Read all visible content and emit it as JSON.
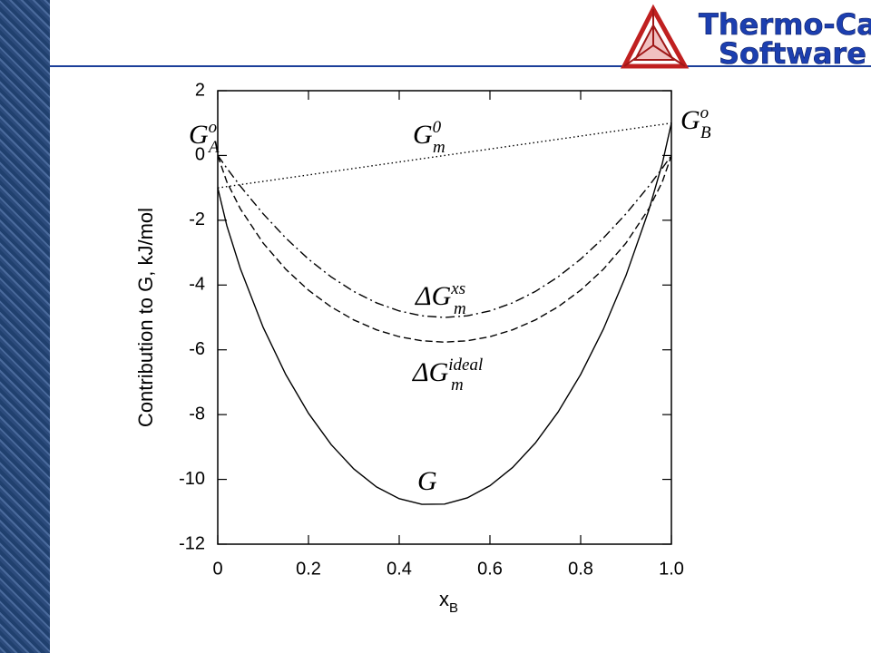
{
  "header": {
    "brand_line1": "Thermo-Calc",
    "brand_line2": "Software"
  },
  "chart_data": {
    "type": "line",
    "ylabel": "Contribution to G, kJ/mol",
    "xlabel": "x",
    "xlabel_sub": "B",
    "x": [
      0,
      0.02,
      0.05,
      0.1,
      0.15,
      0.2,
      0.25,
      0.3,
      0.35,
      0.4,
      0.45,
      0.5,
      0.55,
      0.6,
      0.65,
      0.7,
      0.75,
      0.8,
      0.85,
      0.9,
      0.95,
      0.98,
      1
    ],
    "series": [
      {
        "color": "#000000",
        "linestyle": "dotted",
        "values": [
          -1,
          -0.96,
          -0.9,
          -0.8,
          -0.7,
          -0.6,
          -0.5,
          -0.4,
          -0.3,
          -0.2,
          -0.1,
          0,
          0.1,
          0.2,
          0.3,
          0.4,
          0.5,
          0.6,
          0.7,
          0.8,
          0.9,
          0.96,
          1
        ]
      },
      {
        "color": "#000000",
        "linestyle": "dashed",
        "values": [
          0,
          -0.815,
          -1.65,
          -2.703,
          -3.514,
          -4.16,
          -4.675,
          -5.079,
          -5.383,
          -5.595,
          -5.721,
          -5.763,
          -5.721,
          -5.595,
          -5.383,
          -5.079,
          -4.675,
          -4.16,
          -3.514,
          -2.703,
          -1.65,
          -0.815,
          0
        ]
      },
      {
        "color": "#000000",
        "linestyle": "dashdot",
        "values": [
          0,
          -0.392,
          -0.95,
          -1.8,
          -2.55,
          -3.2,
          -3.75,
          -4.2,
          -4.55,
          -4.8,
          -4.95,
          -5,
          -4.95,
          -4.8,
          -4.55,
          -4.2,
          -3.75,
          -3.2,
          -2.55,
          -1.8,
          -0.95,
          -0.392,
          0
        ]
      },
      {
        "color": "#000000",
        "linestyle": "solid",
        "values": [
          -1,
          -2.167,
          -3.5,
          -5.303,
          -6.764,
          -7.96,
          -8.925,
          -9.679,
          -10.233,
          -10.595,
          -10.771,
          -10.763,
          -10.571,
          -10.195,
          -9.633,
          -8.879,
          -7.925,
          -6.76,
          -5.364,
          -3.703,
          -1.7,
          -0.247,
          1
        ]
      }
    ],
    "annotations": [
      {
        "base": "G",
        "sup": "o",
        "sub": "A"
      },
      {
        "base": "G",
        "sup": "0",
        "sub": "m"
      },
      {
        "base": "ΔG",
        "sup": "xs",
        "sub": "m"
      },
      {
        "base": "ΔG",
        "sup": "ideal",
        "sub": "m"
      },
      {
        "base": "G"
      },
      {
        "base": "G",
        "sup": "o",
        "sub": "B"
      }
    ],
    "xlim": [
      0,
      1
    ],
    "ylim": [
      -12,
      2
    ],
    "xticks": [
      0,
      0.2,
      0.4,
      0.6,
      0.8,
      {
        "value": 1,
        "label": "1.0"
      }
    ],
    "yticks": [
      2,
      0,
      -2,
      -4,
      -6,
      -8,
      -10,
      -12
    ]
  }
}
